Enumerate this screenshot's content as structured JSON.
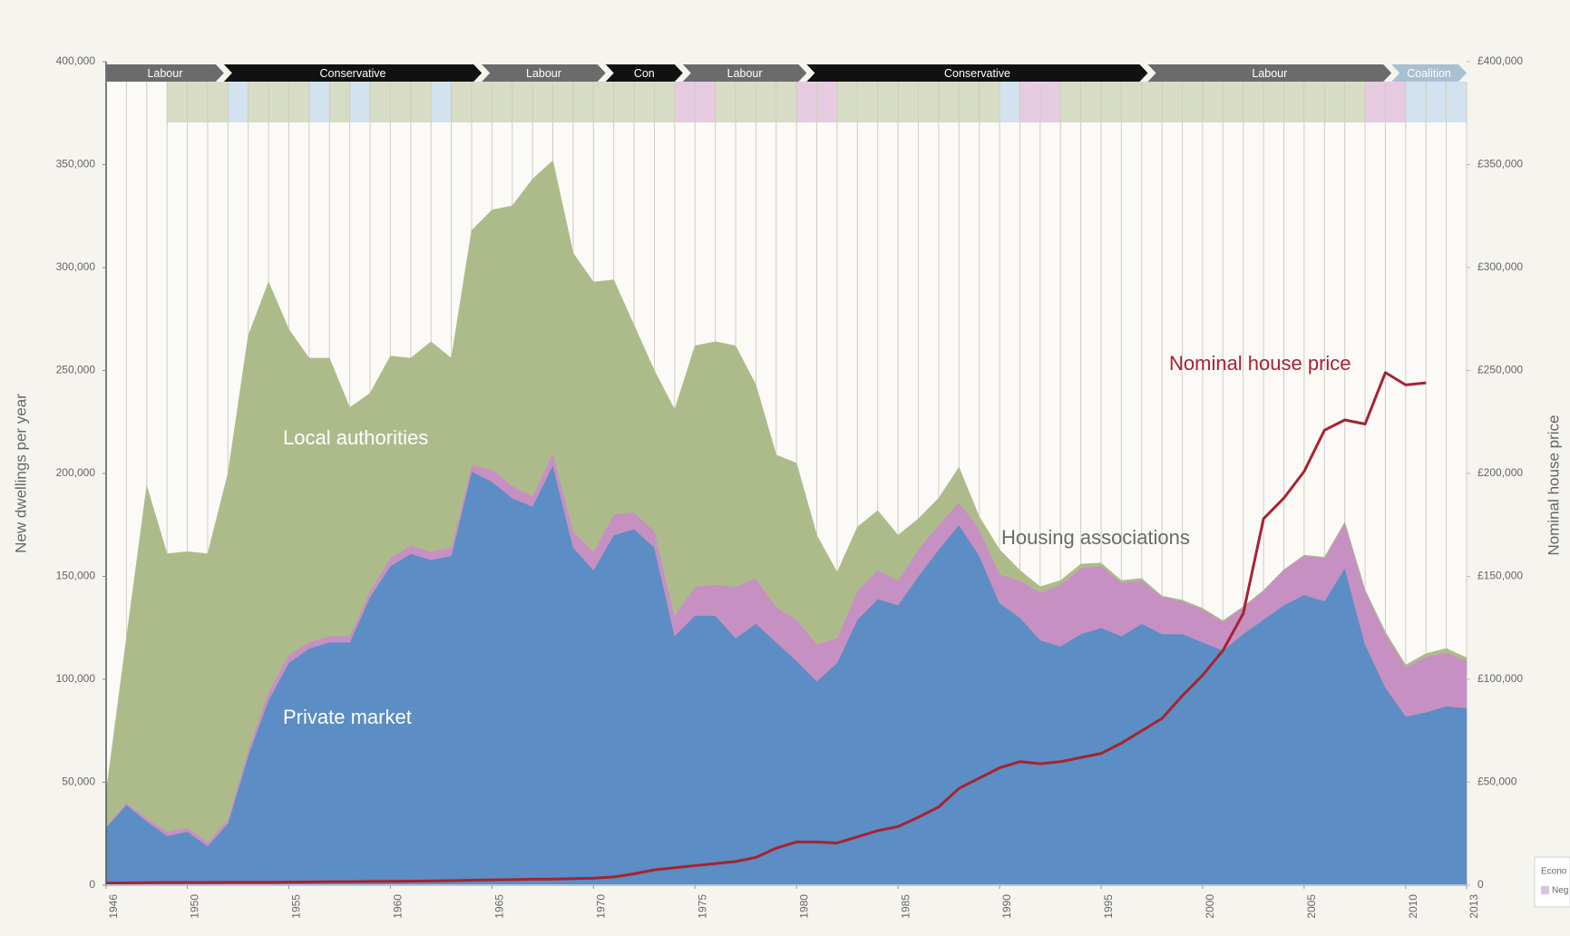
{
  "chart_data": {
    "type": "area",
    "y_label": "New dwellings per year",
    "y2_label": "Nominal house price",
    "x": [
      1946,
      1947,
      1948,
      1949,
      1950,
      1951,
      1952,
      1953,
      1954,
      1955,
      1956,
      1957,
      1958,
      1959,
      1960,
      1961,
      1962,
      1963,
      1964,
      1965,
      1966,
      1967,
      1968,
      1969,
      1970,
      1971,
      1972,
      1973,
      1974,
      1975,
      1976,
      1977,
      1978,
      1979,
      1980,
      1981,
      1982,
      1983,
      1984,
      1985,
      1986,
      1987,
      1988,
      1989,
      1990,
      1991,
      1992,
      1993,
      1994,
      1995,
      1996,
      1997,
      1998,
      1999,
      2000,
      2001,
      2002,
      2003,
      2004,
      2005,
      2006,
      2007,
      2008,
      2009,
      2010,
      2011,
      2012,
      2013
    ],
    "xlim": [
      1946,
      2013
    ],
    "xticks": [
      1946,
      1950,
      1955,
      1960,
      1965,
      1970,
      1975,
      1980,
      1985,
      1990,
      1995,
      2000,
      2005,
      2010,
      2013
    ],
    "x_grid": true,
    "ylim": [
      0,
      400000
    ],
    "yticks": [
      0,
      {
        "value": 50000,
        "label": "50,000"
      },
      {
        "value": 100000,
        "label": "100,000"
      },
      {
        "value": 150000,
        "label": "150,000"
      },
      {
        "value": 200000,
        "label": "200,000"
      },
      {
        "value": 250000,
        "label": "250,000"
      },
      {
        "value": 300000,
        "label": "300,000"
      },
      {
        "value": 350000,
        "label": "350,000"
      },
      {
        "value": 400000,
        "label": "400,000"
      }
    ],
    "y2lim": [
      0,
      400000
    ],
    "y2ticks": [
      0,
      {
        "value": 50000,
        "label": "£50,000"
      },
      {
        "value": 100000,
        "label": "£100,000"
      },
      {
        "value": 150000,
        "label": "£150,000"
      },
      {
        "value": 200000,
        "label": "£200,000"
      },
      {
        "value": 250000,
        "label": "£250,000"
      },
      {
        "value": 300000,
        "label": "£300,000"
      },
      {
        "value": 350000,
        "label": "£350,000"
      },
      {
        "value": 400000,
        "label": "£400,000"
      }
    ],
    "series": [
      {
        "name": "Private market",
        "color": "#5c8dc4",
        "values": [
          28000,
          39000,
          31000,
          24000,
          26000,
          19000,
          30000,
          63000,
          90000,
          108000,
          115000,
          118000,
          118000,
          140000,
          155000,
          161000,
          158000,
          160000,
          201000,
          196000,
          188000,
          184000,
          204000,
          164000,
          153000,
          170000,
          173000,
          164000,
          121000,
          131000,
          131000,
          120000,
          127000,
          118000,
          109000,
          99000,
          108000,
          129000,
          139000,
          136000,
          150000,
          163000,
          175000,
          160000,
          137000,
          130000,
          119000,
          116000,
          122000,
          125000,
          121000,
          127000,
          122000,
          122000,
          118000,
          114000,
          122000,
          129000,
          136000,
          141000,
          138000,
          154000,
          117000,
          96000,
          82000,
          84000,
          87000,
          86000
        ]
      },
      {
        "name": "Housing associations",
        "color": "#c690c2",
        "values": [
          500,
          1000,
          1500,
          2000,
          2000,
          2000,
          2000,
          3000,
          4000,
          4000,
          3000,
          3000,
          3000,
          3000,
          4000,
          4000,
          4000,
          4000,
          3000,
          6000,
          6000,
          5000,
          6000,
          8000,
          9000,
          10000,
          8000,
          8000,
          10000,
          14000,
          15000,
          25000,
          22000,
          17000,
          20000,
          18000,
          12000,
          14000,
          14000,
          12000,
          13000,
          12000,
          11000,
          13000,
          14000,
          18000,
          23000,
          30000,
          32000,
          30000,
          26000,
          21000,
          18000,
          16000,
          16000,
          14000,
          13000,
          14000,
          17000,
          19000,
          21000,
          22000,
          26000,
          26000,
          24000,
          27000,
          26000,
          23000
        ]
      },
      {
        "name": "Local authorities",
        "color": "#adbb8b",
        "values": [
          16500,
          80000,
          161500,
          135000,
          134000,
          140000,
          168000,
          201000,
          199000,
          158000,
          138000,
          135000,
          111000,
          96000,
          98000,
          91000,
          102000,
          92000,
          114000,
          126000,
          136000,
          154000,
          142000,
          135000,
          131000,
          114000,
          91000,
          78000,
          100000,
          117000,
          118000,
          117000,
          94000,
          74000,
          76000,
          53000,
          32000,
          31000,
          29000,
          22000,
          15000,
          13000,
          17000,
          6000,
          12000,
          5000,
          3000,
          2000,
          2000,
          1500,
          1000,
          1000,
          500,
          500,
          500,
          500,
          300,
          300,
          300,
          300,
          300,
          300,
          500,
          1000,
          1000,
          1500,
          2000,
          1500
        ]
      },
      {
        "name": "Nominal house price",
        "color": "#a52330",
        "type": "line",
        "axis": "y2",
        "values": [
          1000,
          1100,
          1200,
          1300,
          1300,
          1300,
          1400,
          1400,
          1400,
          1500,
          1600,
          1700,
          1700,
          1800,
          1900,
          2000,
          2100,
          2200,
          2400,
          2600,
          2700,
          2900,
          3000,
          3200,
          3400,
          4000,
          5500,
          7500,
          8500,
          9500,
          10500,
          11500,
          13500,
          18000,
          21000,
          21000,
          20500,
          23500,
          26500,
          28500,
          33000,
          38000,
          47000,
          52000,
          57000,
          60000,
          59000,
          60000,
          62000,
          64000,
          69000,
          75000,
          81000,
          92000,
          102000,
          114000,
          132000,
          178000,
          188000,
          201000,
          221000,
          226000,
          224000,
          249000,
          243000,
          244000,
          null,
          null
        ]
      }
    ],
    "parties": [
      {
        "name": "Labour",
        "start": 1946,
        "end": 1951.8,
        "color": "#6b6b6b"
      },
      {
        "name": "Conservative",
        "start": 1951.8,
        "end": 1964.5,
        "color": "#111111"
      },
      {
        "name": "Labour",
        "start": 1964.5,
        "end": 1970.6,
        "color": "#6b6b6b"
      },
      {
        "name": "Con",
        "start": 1970.6,
        "end": 1974.4,
        "color": "#111111"
      },
      {
        "name": "Labour",
        "start": 1974.4,
        "end": 1980.5,
        "color": "#6b6b6b"
      },
      {
        "name": "Conservative",
        "start": 1980.5,
        "end": 1997.3,
        "color": "#111111"
      },
      {
        "name": "Labour",
        "start": 1997.3,
        "end": 2009.3,
        "color": "#6b6b6b"
      },
      {
        "name": "Coalition",
        "start": 2009.3,
        "end": 2013,
        "color": "#a9bfd2"
      }
    ],
    "economy": [
      {
        "start": 1949,
        "end": 1952,
        "color": "#d7dcc4"
      },
      {
        "start": 1952,
        "end": 1953,
        "color": "#d2e2ee"
      },
      {
        "start": 1953,
        "end": 1956,
        "color": "#d7dcc4"
      },
      {
        "start": 1956,
        "end": 1957,
        "color": "#d2e2ee"
      },
      {
        "start": 1957,
        "end": 1958,
        "color": "#d7dcc4"
      },
      {
        "start": 1958,
        "end": 1959,
        "color": "#d2e2ee"
      },
      {
        "start": 1959,
        "end": 1962,
        "color": "#d7dcc4"
      },
      {
        "start": 1962,
        "end": 1963,
        "color": "#d2e2ee"
      },
      {
        "start": 1963,
        "end": 1974,
        "color": "#d7dcc4"
      },
      {
        "start": 1974,
        "end": 1976,
        "color": "#e6cbe0"
      },
      {
        "start": 1976,
        "end": 1980,
        "color": "#d7dcc4"
      },
      {
        "start": 1980,
        "end": 1982,
        "color": "#e6cbe0"
      },
      {
        "start": 1982,
        "end": 1990,
        "color": "#d7dcc4"
      },
      {
        "start": 1990,
        "end": 1991,
        "color": "#d2e2ee"
      },
      {
        "start": 1991,
        "end": 1993,
        "color": "#e6cbe0"
      },
      {
        "start": 1993,
        "end": 2008,
        "color": "#d7dcc4"
      },
      {
        "start": 2008,
        "end": 2010,
        "color": "#e6cbe0"
      },
      {
        "start": 2010,
        "end": 2013,
        "color": "#d2e2ee"
      }
    ],
    "economy_legend": {
      "title": "Econo",
      "entry": "Neg",
      "color": "#d9c3dc"
    }
  }
}
